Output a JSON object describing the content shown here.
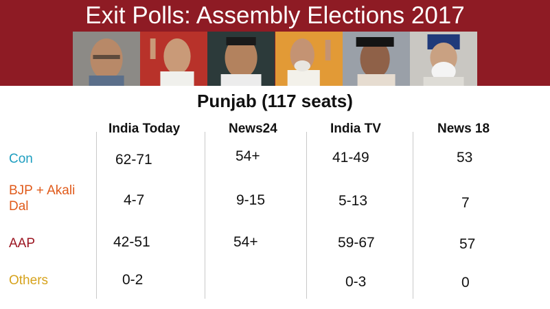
{
  "header": {
    "title": "Exit Polls: Assembly Elections 2017",
    "photos": [
      "politician-photo-1",
      "politician-photo-2",
      "politician-photo-3",
      "politician-photo-4",
      "politician-photo-5",
      "politician-photo-6"
    ]
  },
  "subtitle": "Punjab (117 seats)",
  "columns": [
    "India Today",
    "News24",
    "India TV",
    "News 18"
  ],
  "rows": [
    {
      "label": "Con",
      "color": "#1e9ec0",
      "values": [
        "62-71",
        "54+",
        "41-49",
        "53"
      ]
    },
    {
      "label": "BJP + Akali Dal",
      "color": "#e05a1a",
      "values": [
        "4-7",
        "9-15",
        "5-13",
        "7"
      ]
    },
    {
      "label": "AAP",
      "color": "#9b1420",
      "values": [
        "42-51",
        "54+",
        "59-67",
        "57"
      ]
    },
    {
      "label": "Others",
      "color": "#d6a21c",
      "values": [
        "0-2",
        "",
        "0-3",
        "0"
      ]
    }
  ]
}
